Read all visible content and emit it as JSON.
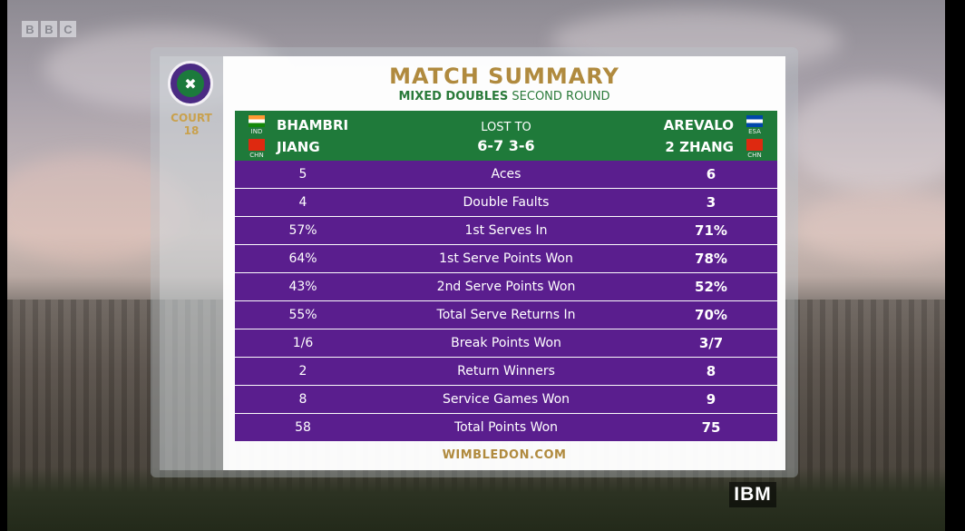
{
  "broadcaster": {
    "letters": [
      "B",
      "B",
      "C"
    ]
  },
  "sponsor": {
    "label": "IBM"
  },
  "logo": {
    "icon": "wimbledon-logo-icon"
  },
  "court": {
    "label": "COURT",
    "number": "18"
  },
  "header": {
    "title": "MATCH SUMMARY",
    "subtitle_bold": "MIXED DOUBLES",
    "subtitle_rest": " SECOND ROUND"
  },
  "match": {
    "left_team": [
      {
        "name": "BHAMBRI",
        "country": "IND"
      },
      {
        "name": "JIANG",
        "country": "CHN"
      }
    ],
    "right_team": [
      {
        "name": "AREVALO",
        "country": "ESA"
      },
      {
        "name": "2 ZHANG",
        "country": "CHN"
      }
    ],
    "result_label": "LOST TO",
    "score": "6-7 3-6"
  },
  "stats": [
    {
      "label": "Aces",
      "left": "5",
      "right": "6"
    },
    {
      "label": "Double Faults",
      "left": "4",
      "right": "3"
    },
    {
      "label": "1st Serves In",
      "left": "57%",
      "right": "71%"
    },
    {
      "label": "1st Serve Points Won",
      "left": "64%",
      "right": "78%"
    },
    {
      "label": "2nd Serve Points Won",
      "left": "43%",
      "right": "52%"
    },
    {
      "label": "Total Serve Returns In",
      "left": "55%",
      "right": "70%"
    },
    {
      "label": "Break Points Won",
      "left": "1/6",
      "right": "3/7"
    },
    {
      "label": "Return Winners",
      "left": "2",
      "right": "8"
    },
    {
      "label": "Service Games Won",
      "left": "8",
      "right": "9"
    },
    {
      "label": "Total Points Won",
      "left": "58",
      "right": "75"
    }
  ],
  "footer": {
    "url": "WIMBLEDON.COM"
  },
  "colors": {
    "purple": "#5a1e8e",
    "green": "#1f7a3a",
    "gold": "#b08a3e"
  }
}
